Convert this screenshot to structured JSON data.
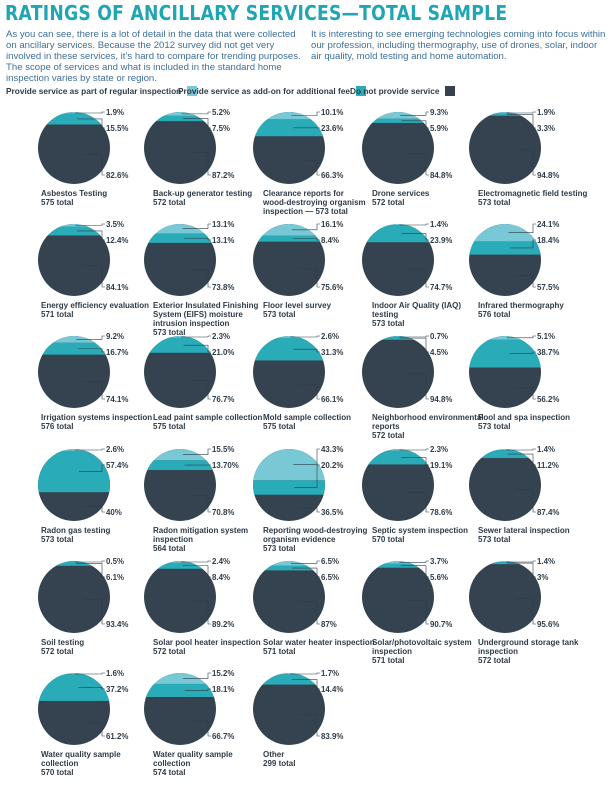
{
  "header": {
    "title": "RATINGS OF ANCILLARY SERVICES—TOTAL SAMPLE",
    "intro_left": "As you can see, there is a lot of detail in the data that were collected on ancillary services. Because the 2012 survey did not get very involved in these services, it’s hard to compare for trending purposes. The scope of services and what is included in the standard home inspection varies by state or region.",
    "intro_right": "It is interesting to see emerging technologies coming into focus within our profession, including thermography, use of drones, solar, indoor air quality, mold testing and home automation."
  },
  "colors": {
    "regular": "#78c8d6",
    "addon": "#2aacb8",
    "none": "#34434f",
    "text": "#2f3b47",
    "title": "#1fa5b3"
  },
  "chart_data": {
    "type": "pie",
    "title": "RATINGS OF ANCILLARY SERVICES—TOTAL SAMPLE",
    "legend": [
      {
        "key": "regular",
        "label": "Provide service as part of regular inspection"
      },
      {
        "key": "addon",
        "label": "Provide service as add-on for additional fee"
      },
      {
        "key": "none",
        "label": "Do not provide service"
      }
    ],
    "series_order": [
      "regular",
      "addon",
      "none"
    ],
    "pies": [
      {
        "name": "Asbestos Testing",
        "total": "575 total",
        "regular": 1.9,
        "addon": 15.5,
        "none": 82.6,
        "labels": [
          "1.9%",
          "15.5%",
          "82.6%"
        ]
      },
      {
        "name": "Back-up generator testing",
        "total": "572 total",
        "regular": 5.2,
        "addon": 7.5,
        "none": 87.2,
        "labels": [
          "5.2%",
          "7.5%",
          "87.2%"
        ]
      },
      {
        "name": "Clearance reports for wood-destroying organism inspection — 573 total",
        "total": "",
        "regular": 10.1,
        "addon": 23.6,
        "none": 66.3,
        "labels": [
          "10.1%",
          "23.6%",
          "66.3%"
        ]
      },
      {
        "name": "Drone services",
        "total": "572 total",
        "regular": 9.3,
        "addon": 5.9,
        "none": 84.8,
        "labels": [
          "9.3%",
          "5.9%",
          "84.8%"
        ]
      },
      {
        "name": "Electromagnetic field testing",
        "total": "573 total",
        "regular": 1.9,
        "addon": 3.3,
        "none": 94.8,
        "labels": [
          "1.9%",
          "3.3%",
          "94.8%"
        ]
      },
      {
        "name": "Energy efficiency evaluation",
        "total": "571 total",
        "regular": 3.5,
        "addon": 12.4,
        "none": 84.1,
        "labels": [
          "3.5%",
          "12.4%",
          "84.1%"
        ]
      },
      {
        "name": "Exterior Insulated Finishing System (EIFS) moisture intrusion inspection",
        "total": "573 total",
        "regular": 13.1,
        "addon": 13.1,
        "none": 73.8,
        "labels": [
          "13.1%",
          "13.1%",
          "73.8%"
        ]
      },
      {
        "name": "Floor level survey",
        "total": "573 total",
        "regular": 16.1,
        "addon": 8.4,
        "none": 75.6,
        "labels": [
          "16.1%",
          "8.4%",
          "75.6%"
        ]
      },
      {
        "name": "Indoor Air Quality (IAQ) testing",
        "total": "573 total",
        "regular": 1.4,
        "addon": 23.9,
        "none": 74.7,
        "labels": [
          "1.4%",
          "23.9%",
          "74.7%"
        ]
      },
      {
        "name": "Infrared thermography",
        "total": "576 total",
        "regular": 24.1,
        "addon": 18.4,
        "none": 57.5,
        "labels": [
          "24.1%",
          "18.4%",
          "57.5%"
        ]
      },
      {
        "name": "Irrigation systems inspection",
        "total": "576 total",
        "regular": 9.2,
        "addon": 16.7,
        "none": 74.1,
        "labels": [
          "9.2%",
          "16.7%",
          "74.1%"
        ]
      },
      {
        "name": "Lead paint sample collection",
        "total": "575 total",
        "regular": 2.3,
        "addon": 21.0,
        "none": 76.7,
        "labels": [
          "2.3%",
          "21.0%",
          "76.7%"
        ]
      },
      {
        "name": "Mold sample collection",
        "total": "575 total",
        "regular": 2.6,
        "addon": 31.3,
        "none": 66.1,
        "labels": [
          "2.6%",
          "31.3%",
          "66.1%"
        ]
      },
      {
        "name": "Neighborhood environmental reports",
        "total": "572 total",
        "regular": 0.7,
        "addon": 4.5,
        "none": 94.8,
        "labels": [
          "0.7%",
          "4.5%",
          "94.8%"
        ]
      },
      {
        "name": "Pool and spa inspection",
        "total": "573 total",
        "regular": 5.1,
        "addon": 38.7,
        "none": 56.2,
        "labels": [
          "5.1%",
          "38.7%",
          "56.2%"
        ]
      },
      {
        "name": "Radon gas testing",
        "total": "573 total",
        "regular": 2.6,
        "addon": 57.4,
        "none": 40,
        "labels": [
          "2.6%",
          "57.4%",
          "40%"
        ]
      },
      {
        "name": "Radon mitigation system inspection",
        "total": "564 total",
        "regular": 15.5,
        "addon": 13.7,
        "none": 70.8,
        "labels": [
          "15.5%",
          "13.70%",
          "70.8%"
        ]
      },
      {
        "name": "Reporting wood-destroying organism evidence",
        "total": "573 total",
        "regular": 43.3,
        "addon": 20.2,
        "none": 36.5,
        "labels": [
          "43.3%",
          "20.2%",
          "36.5%"
        ]
      },
      {
        "name": "Septic system inspection",
        "total": "570 total",
        "regular": 2.3,
        "addon": 19.1,
        "none": 78.6,
        "labels": [
          "2.3%",
          "19.1%",
          "78.6%"
        ]
      },
      {
        "name": "Sewer lateral inspection",
        "total": "573 total",
        "regular": 1.4,
        "addon": 11.2,
        "none": 87.4,
        "labels": [
          "1.4%",
          "11.2%",
          "87.4%"
        ]
      },
      {
        "name": "Soil testing",
        "total": "572 total",
        "regular": 0.5,
        "addon": 6.1,
        "none": 93.4,
        "labels": [
          "0.5%",
          "6.1%",
          "93.4%"
        ]
      },
      {
        "name": "Solar pool heater inspection",
        "total": "572 total",
        "regular": 2.4,
        "addon": 8.4,
        "none": 89.2,
        "labels": [
          "2.4%",
          "8.4%",
          "89.2%"
        ]
      },
      {
        "name": "Solar water heater inspection",
        "total": "571 total",
        "regular": 6.5,
        "addon": 6.5,
        "none": 87,
        "labels": [
          "6.5%",
          "6.5%",
          "87%"
        ]
      },
      {
        "name": "Solar/photovoltaic system inspection",
        "total": "571 total",
        "regular": 3.7,
        "addon": 5.6,
        "none": 90.7,
        "labels": [
          "3.7%",
          "5.6%",
          "90.7%"
        ]
      },
      {
        "name": "Underground storage tank inspection",
        "total": "572 total",
        "regular": 1.4,
        "addon": 3,
        "none": 95.6,
        "labels": [
          "1.4%",
          "3%",
          "95.6%"
        ]
      },
      {
        "name": "Water quality sample collection",
        "total": "570 total",
        "regular": 1.6,
        "addon": 37.2,
        "none": 61.2,
        "labels": [
          "1.6%",
          "37.2%",
          "61.2%"
        ]
      },
      {
        "name": "Water quality sample collection",
        "total": "574 total",
        "regular": 15.2,
        "addon": 18.1,
        "none": 66.7,
        "labels": [
          "15.2%",
          "18.1%",
          "66.7%"
        ]
      },
      {
        "name": "Other",
        "total": "299 total",
        "regular": 1.7,
        "addon": 14.4,
        "none": 83.9,
        "labels": [
          "1.7%",
          "14.4%",
          "83.9%"
        ]
      }
    ]
  }
}
